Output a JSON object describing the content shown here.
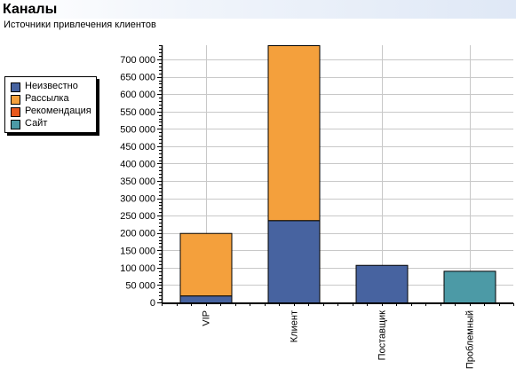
{
  "header": {
    "title": "Каналы",
    "subtitle": "Источники привлечения клиентов"
  },
  "legend": {
    "items": [
      {
        "label": "Неизвестно",
        "color": "#4763a0"
      },
      {
        "label": "Рассылка",
        "color": "#f4a03c"
      },
      {
        "label": "Рекомендация",
        "color": "#e8571c"
      },
      {
        "label": "Сайт",
        "color": "#4c9aa6"
      }
    ]
  },
  "chart_data": {
    "type": "bar",
    "stacked": true,
    "title": "Каналы",
    "subtitle": "Источники привлечения клиентов",
    "categories": [
      "VIP",
      "Клиент",
      "Поставщик",
      "Проблемный"
    ],
    "series": [
      {
        "name": "Неизвестно",
        "color": "#4763a0",
        "values": [
          20000,
          237000,
          108000,
          0
        ]
      },
      {
        "name": "Рассылка",
        "color": "#f4a03c",
        "values": [
          180000,
          504000,
          0,
          0
        ]
      },
      {
        "name": "Рекомендация",
        "color": "#e8571c",
        "values": [
          0,
          0,
          0,
          0
        ]
      },
      {
        "name": "Сайт",
        "color": "#4c9aa6",
        "values": [
          0,
          0,
          0,
          91000
        ]
      }
    ],
    "ylim": [
      0,
      741000
    ],
    "yticks": [
      0,
      50000,
      100000,
      150000,
      200000,
      250000,
      300000,
      350000,
      400000,
      450000,
      500000,
      550000,
      600000,
      650000,
      700000
    ],
    "ytick_labels": [
      "0",
      "50 000",
      "100 000",
      "150 000",
      "200 000",
      "250 000",
      "300 000",
      "350 000",
      "400 000",
      "450 000",
      "500 000",
      "550 000",
      "600 000",
      "650 000",
      "700 000"
    ],
    "grid": true,
    "legend_position": "left"
  }
}
